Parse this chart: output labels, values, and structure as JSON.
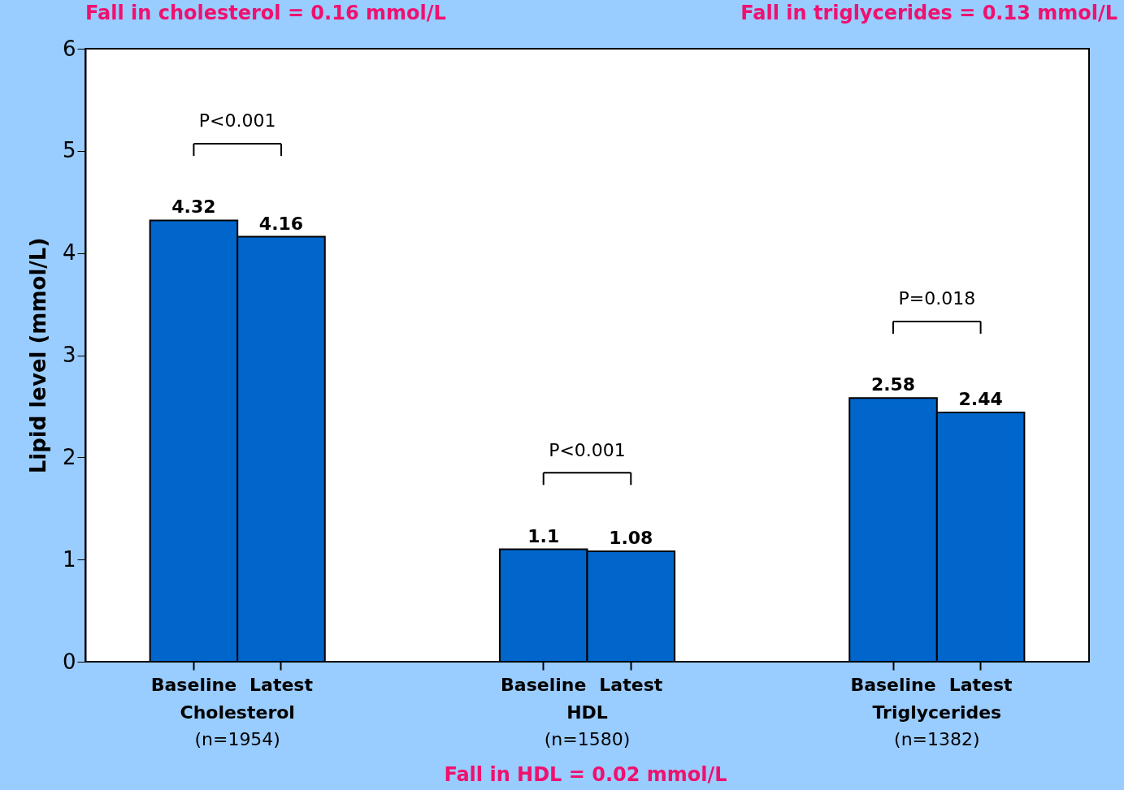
{
  "chart_data": {
    "type": "bar",
    "categories": [
      "Baseline",
      "Latest",
      null,
      null,
      "Baseline",
      "Latest",
      null,
      null,
      "Baseline",
      "Latest"
    ],
    "values": [
      4.32,
      4.16,
      null,
      null,
      1.1,
      1.08,
      null,
      null,
      2.58,
      2.44
    ],
    "color": "#0066cc",
    "ylabel": "Lipid level (mmol/L)",
    "ylim": [
      0,
      6
    ],
    "yticks": [
      0,
      1,
      2,
      3,
      4,
      5,
      6
    ],
    "grid": false,
    "data_labels": true,
    "annotations": [
      "P<0.001",
      "P<0.001",
      "P=0.018",
      "Cholesterol",
      "(n=1954)",
      "HDL",
      "(n=1580)",
      "Triglycerides",
      "(n=1382)",
      "Fall in cholesterol  = 0.16 mmol/L",
      "Fall in triglycerides = 0.13 mmol/L",
      "Fall in HDL = 0.02 mmol/L"
    ]
  }
}
